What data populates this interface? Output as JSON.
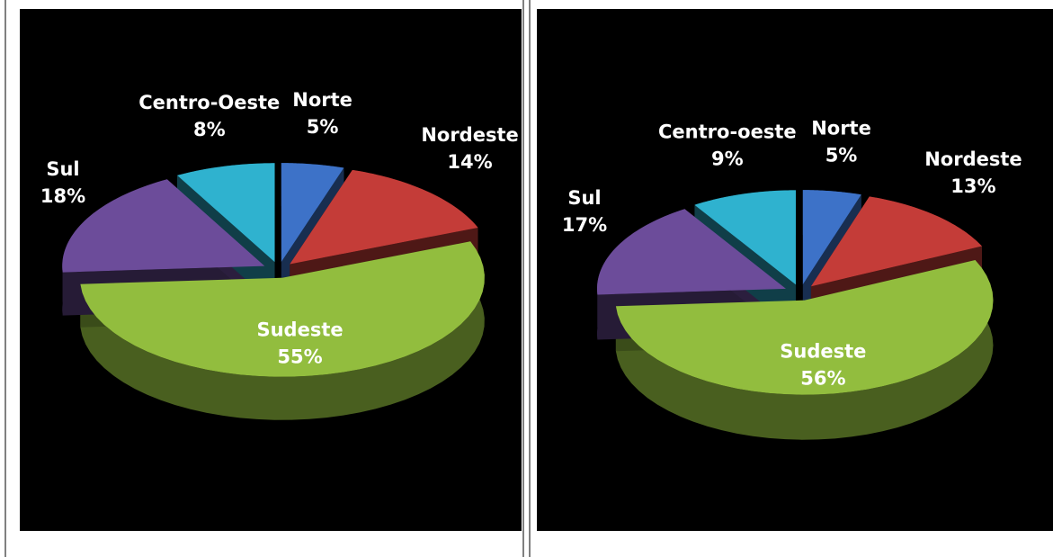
{
  "chart_data": [
    {
      "type": "pie",
      "categories": [
        "Norte",
        "Nordeste",
        "Sudeste",
        "Sul",
        "Centro-Oeste"
      ],
      "values": [
        5,
        14,
        55,
        18,
        8
      ],
      "value_labels": [
        "5%",
        "14%",
        "55%",
        "18%",
        "8%"
      ],
      "colors": [
        "#3d72c8",
        "#c43c38",
        "#92bd3e",
        "#6c4c9a",
        "#2fb2cf"
      ]
    },
    {
      "type": "pie",
      "categories": [
        "Norte",
        "Nordeste",
        "Sudeste",
        "Sul",
        "Centro-oeste"
      ],
      "values": [
        5,
        13,
        56,
        17,
        9
      ],
      "value_labels": [
        "5%",
        "13%",
        "56%",
        "17%",
        "9%"
      ],
      "colors": [
        "#3d72c8",
        "#c43c38",
        "#92bd3e",
        "#6c4c9a",
        "#2fb2cf"
      ]
    }
  ]
}
